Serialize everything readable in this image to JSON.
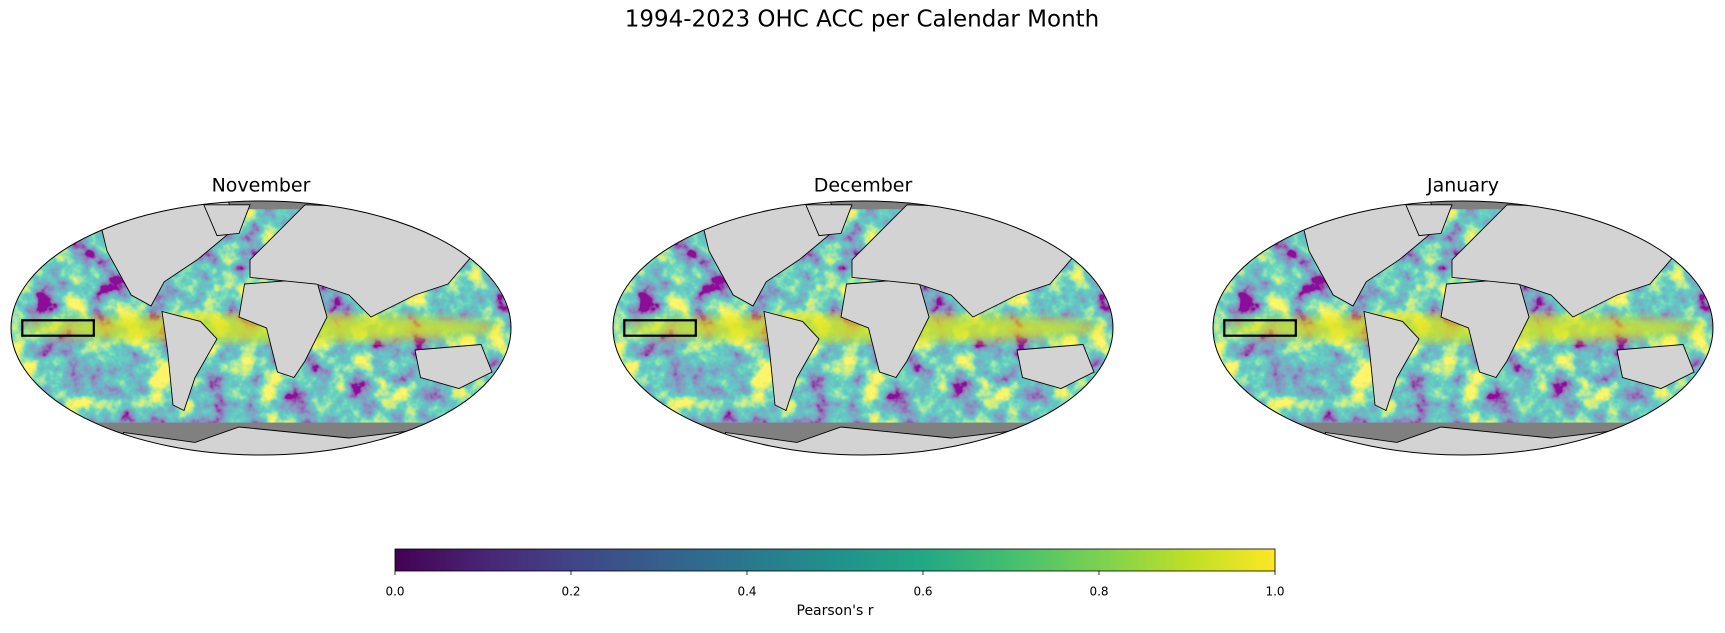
{
  "title": "1994-2023 OHC ACC per Calendar Month",
  "panels": [
    {
      "title": "November"
    },
    {
      "title": "December"
    },
    {
      "title": "January"
    }
  ],
  "colorbar": {
    "label": "Pearson's r",
    "lim": [
      0,
      1
    ],
    "ticks": [
      {
        "value": 0,
        "label": "0.0"
      },
      {
        "value": 0.2,
        "label": "0.2"
      },
      {
        "value": 0.4,
        "label": "0.4"
      },
      {
        "value": 0.6,
        "label": "0.6"
      },
      {
        "value": 0.8,
        "label": "0.8"
      },
      {
        "value": 1,
        "label": "1.0"
      }
    ]
  }
}
